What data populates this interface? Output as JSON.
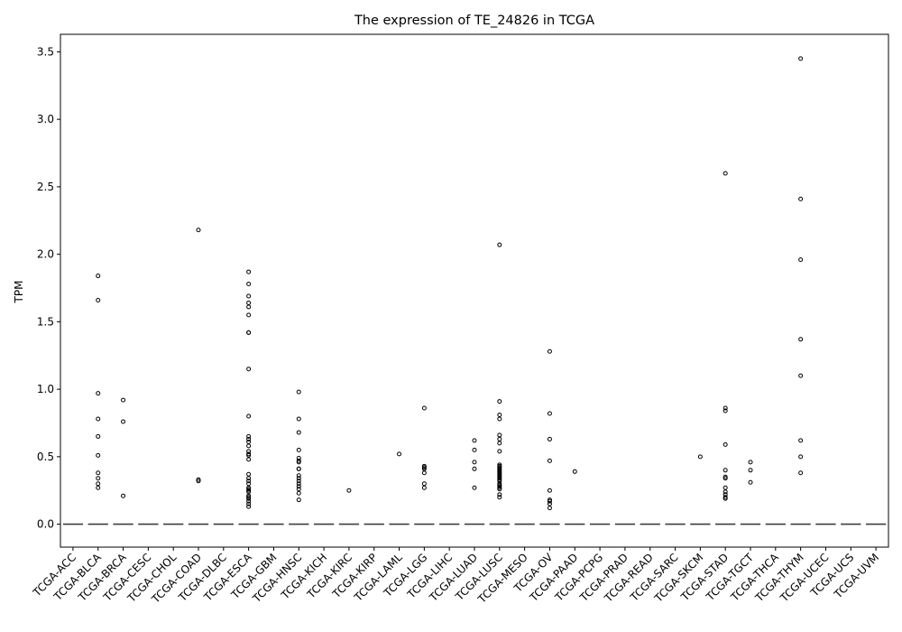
{
  "chart_data": {
    "type": "box",
    "title": "The expression of TE_24826 in TCGA",
    "xlabel": "",
    "ylabel": "TPM",
    "ylim": [
      -0.17,
      3.63
    ],
    "yticks": [
      0.0,
      0.5,
      1.0,
      1.5,
      2.0,
      2.5,
      3.0,
      3.5
    ],
    "ytick_labels": [
      "0.0",
      "0.5",
      "1.0",
      "1.5",
      "2.0",
      "2.5",
      "3.0",
      "3.5"
    ],
    "grid": false,
    "legend": "none",
    "categories": [
      "TCGA-ACC",
      "TCGA-BLCA",
      "TCGA-BRCA",
      "TCGA-CESC",
      "TCGA-CHOL",
      "TCGA-COAD",
      "TCGA-DLBC",
      "TCGA-ESCA",
      "TCGA-GBM",
      "TCGA-HNSC",
      "TCGA-KICH",
      "TCGA-KIRC",
      "TCGA-KIRP",
      "TCGA-LAML",
      "TCGA-LGG",
      "TCGA-LIHC",
      "TCGA-LUAD",
      "TCGA-LUSC",
      "TCGA-MESO",
      "TCGA-OV",
      "TCGA-PAAD",
      "TCGA-PCPG",
      "TCGA-PRAD",
      "TCGA-READ",
      "TCGA-SARC",
      "TCGA-SKCM",
      "TCGA-STAD",
      "TCGA-TGCT",
      "TCGA-THCA",
      "TCGA-THYM",
      "TCGA-UCEC",
      "TCGA-UCS",
      "TCGA-UVM"
    ],
    "box_median": 0.0,
    "outliers": [
      [],
      [
        1.84,
        1.66,
        0.97,
        0.78,
        0.65,
        0.51,
        0.38,
        0.34,
        0.3,
        0.27
      ],
      [
        0.92,
        0.76,
        0.21
      ],
      [],
      [],
      [
        2.18,
        0.33,
        0.32
      ],
      [],
      [
        1.87,
        1.78,
        1.69,
        1.64,
        1.61,
        1.55,
        1.42,
        1.42,
        1.15,
        0.8,
        0.65,
        0.63,
        0.61,
        0.58,
        0.54,
        0.52,
        0.51,
        0.48,
        0.37,
        0.34,
        0.32,
        0.3,
        0.27,
        0.26,
        0.25,
        0.24,
        0.21,
        0.2,
        0.19,
        0.17,
        0.15,
        0.13
      ],
      [],
      [
        0.98,
        0.78,
        0.68,
        0.55,
        0.49,
        0.47,
        0.46,
        0.41,
        0.41,
        0.36,
        0.34,
        0.32,
        0.3,
        0.28,
        0.26,
        0.23,
        0.18
      ],
      [],
      [
        0.25
      ],
      [],
      [
        0.52
      ],
      [
        0.86,
        0.43,
        0.42,
        0.41,
        0.38,
        0.3,
        0.27
      ],
      [],
      [
        0.62,
        0.55,
        0.46,
        0.41,
        0.27
      ],
      [
        2.07,
        0.91,
        0.81,
        0.78,
        0.66,
        0.63,
        0.6,
        0.54,
        0.44,
        0.43,
        0.42,
        0.41,
        0.4,
        0.39,
        0.38,
        0.37,
        0.36,
        0.35,
        0.34,
        0.33,
        0.32,
        0.3,
        0.29,
        0.28,
        0.27,
        0.26,
        0.22,
        0.2
      ],
      [],
      [
        1.28,
        0.82,
        0.63,
        0.47,
        0.25,
        0.18,
        0.17,
        0.15,
        0.12
      ],
      [
        0.39
      ],
      [],
      [],
      [],
      [],
      [
        0.5
      ],
      [
        2.6,
        0.86,
        0.84,
        0.59,
        0.4,
        0.35,
        0.34,
        0.27,
        0.24,
        0.22,
        0.2,
        0.19
      ],
      [
        0.46,
        0.4,
        0.31
      ],
      [],
      [
        3.45,
        2.41,
        1.96,
        1.37,
        1.1,
        0.62,
        0.5,
        0.38
      ],
      [],
      [],
      []
    ]
  }
}
